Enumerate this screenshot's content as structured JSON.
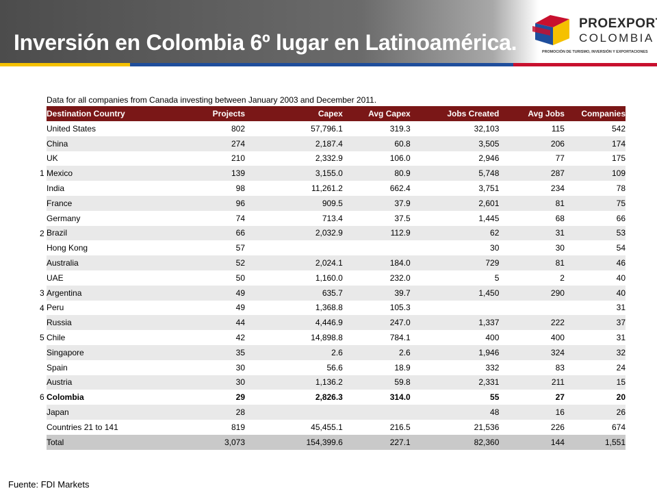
{
  "title": "Inversión en Colombia 6º lugar en Latinoamérica.",
  "logo": {
    "brand": "PROEXPORT",
    "country": "COLOMBIA",
    "tagline": "PROMOCIÓN DE TURISMO, INVERSIÓN Y EXPORTACIONES"
  },
  "subtitle": "Data for all companies from Canada investing between January 2003 and December 2011.",
  "columns": [
    "Destination Country",
    "Projects",
    "Capex",
    "Avg Capex",
    "Jobs Created",
    "Avg Jobs",
    "Companies"
  ],
  "rows": [
    {
      "rank": "",
      "country": "United States",
      "projects": "802",
      "capex": "57,796.1",
      "avg_capex": "319.3",
      "jobs": "32,103",
      "avg_jobs": "115",
      "companies": "542"
    },
    {
      "rank": "",
      "country": "China",
      "projects": "274",
      "capex": "2,187.4",
      "avg_capex": "60.8",
      "jobs": "3,505",
      "avg_jobs": "206",
      "companies": "174"
    },
    {
      "rank": "",
      "country": "UK",
      "projects": "210",
      "capex": "2,332.9",
      "avg_capex": "106.0",
      "jobs": "2,946",
      "avg_jobs": "77",
      "companies": "175"
    },
    {
      "rank": "1",
      "country": "Mexico",
      "projects": "139",
      "capex": "3,155.0",
      "avg_capex": "80.9",
      "jobs": "5,748",
      "avg_jobs": "287",
      "companies": "109"
    },
    {
      "rank": "",
      "country": "India",
      "projects": "98",
      "capex": "11,261.2",
      "avg_capex": "662.4",
      "jobs": "3,751",
      "avg_jobs": "234",
      "companies": "78"
    },
    {
      "rank": "",
      "country": "France",
      "projects": "96",
      "capex": "909.5",
      "avg_capex": "37.9",
      "jobs": "2,601",
      "avg_jobs": "81",
      "companies": "75"
    },
    {
      "rank": "",
      "country": "Germany",
      "projects": "74",
      "capex": "713.4",
      "avg_capex": "37.5",
      "jobs": "1,445",
      "avg_jobs": "68",
      "companies": "66"
    },
    {
      "rank": "2",
      "country": "Brazil",
      "projects": "66",
      "capex": "2,032.9",
      "avg_capex": "112.9",
      "jobs": "62",
      "avg_jobs": "31",
      "companies": "53"
    },
    {
      "rank": "",
      "country": "Hong Kong",
      "projects": "57",
      "capex": "",
      "avg_capex": "",
      "jobs": "30",
      "avg_jobs": "30",
      "companies": "54"
    },
    {
      "rank": "",
      "country": "Australia",
      "projects": "52",
      "capex": "2,024.1",
      "avg_capex": "184.0",
      "jobs": "729",
      "avg_jobs": "81",
      "companies": "46"
    },
    {
      "rank": "",
      "country": "UAE",
      "projects": "50",
      "capex": "1,160.0",
      "avg_capex": "232.0",
      "jobs": "5",
      "avg_jobs": "2",
      "companies": "40"
    },
    {
      "rank": "3",
      "country": "Argentina",
      "projects": "49",
      "capex": "635.7",
      "avg_capex": "39.7",
      "jobs": "1,450",
      "avg_jobs": "290",
      "companies": "40"
    },
    {
      "rank": "4",
      "country": "Peru",
      "projects": "49",
      "capex": "1,368.8",
      "avg_capex": "105.3",
      "jobs": "",
      "avg_jobs": "",
      "companies": "31"
    },
    {
      "rank": "",
      "country": "Russia",
      "projects": "44",
      "capex": "4,446.9",
      "avg_capex": "247.0",
      "jobs": "1,337",
      "avg_jobs": "222",
      "companies": "37"
    },
    {
      "rank": "5",
      "country": "Chile",
      "projects": "42",
      "capex": "14,898.8",
      "avg_capex": "784.1",
      "jobs": "400",
      "avg_jobs": "400",
      "companies": "31"
    },
    {
      "rank": "",
      "country": "Singapore",
      "projects": "35",
      "capex": "2.6",
      "avg_capex": "2.6",
      "jobs": "1,946",
      "avg_jobs": "324",
      "companies": "32"
    },
    {
      "rank": "",
      "country": "Spain",
      "projects": "30",
      "capex": "56.6",
      "avg_capex": "18.9",
      "jobs": "332",
      "avg_jobs": "83",
      "companies": "24"
    },
    {
      "rank": "",
      "country": "Austria",
      "projects": "30",
      "capex": "1,136.2",
      "avg_capex": "59.8",
      "jobs": "2,331",
      "avg_jobs": "211",
      "companies": "15"
    },
    {
      "rank": "6",
      "country": "Colombia",
      "projects": "29",
      "capex": "2,826.3",
      "avg_capex": "314.0",
      "jobs": "55",
      "avg_jobs": "27",
      "companies": "20",
      "bold": true
    },
    {
      "rank": "",
      "country": "Japan",
      "projects": "28",
      "capex": "",
      "avg_capex": "",
      "jobs": "48",
      "avg_jobs": "16",
      "companies": "26"
    },
    {
      "rank": "",
      "country": "Countries 21 to 141",
      "projects": "819",
      "capex": "45,455.1",
      "avg_capex": "216.5",
      "jobs": "21,536",
      "avg_jobs": "226",
      "companies": "674"
    },
    {
      "rank": "",
      "country": "Total",
      "projects": "3,073",
      "capex": "154,399.6",
      "avg_capex": "227.1",
      "jobs": "82,360",
      "avg_jobs": "144",
      "companies": "1,551",
      "total": true
    }
  ],
  "footer": "Fuente: FDI Markets",
  "colors": {
    "header_row": "#7a1717",
    "title_bar": "#5a5a5a",
    "stripe_yellow": "#f5c100",
    "stripe_blue": "#1f4e9c",
    "stripe_red": "#c8102e"
  }
}
